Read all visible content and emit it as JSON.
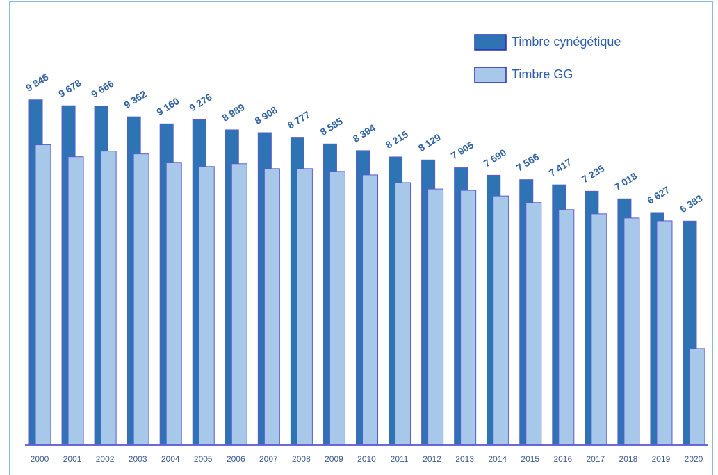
{
  "chart_data": {
    "type": "bar",
    "categories": [
      "2000",
      "2001",
      "2002",
      "2003",
      "2004",
      "2005",
      "2006",
      "2007",
      "2008",
      "2009",
      "2010",
      "2011",
      "2012",
      "2013",
      "2014",
      "2015",
      "2016",
      "2017",
      "2018",
      "2019",
      "2020"
    ],
    "series": [
      {
        "name": "Timbre cynégétique",
        "color": "#2e74b5",
        "values": [
          9846,
          9678,
          9666,
          9362,
          9160,
          9276,
          8989,
          8908,
          8777,
          8585,
          8394,
          8215,
          8129,
          7905,
          7690,
          7566,
          7417,
          7235,
          7018,
          6627,
          6383
        ],
        "value_labels": [
          "9 846",
          "9 678",
          "9 666",
          "9 362",
          "9 160",
          "9 276",
          "8 989",
          "8 908",
          "8 777",
          "8 585",
          "8 394",
          "8 215",
          "8 129",
          "7 905",
          "7 690",
          "7 566",
          "7 417",
          "7 235",
          "7 018",
          "6 627",
          "6 383"
        ]
      },
      {
        "name": "Timbre GG",
        "color": "#a8c8ea",
        "values": [
          8560,
          8220,
          8380,
          8300,
          8060,
          7940,
          8020,
          7880,
          7880,
          7800,
          7700,
          7480,
          7300,
          7260,
          7100,
          6910,
          6710,
          6590,
          6470,
          6390,
          2740
        ]
      }
    ],
    "ylim": [
      0,
      10000
    ],
    "legend": "top-right"
  }
}
